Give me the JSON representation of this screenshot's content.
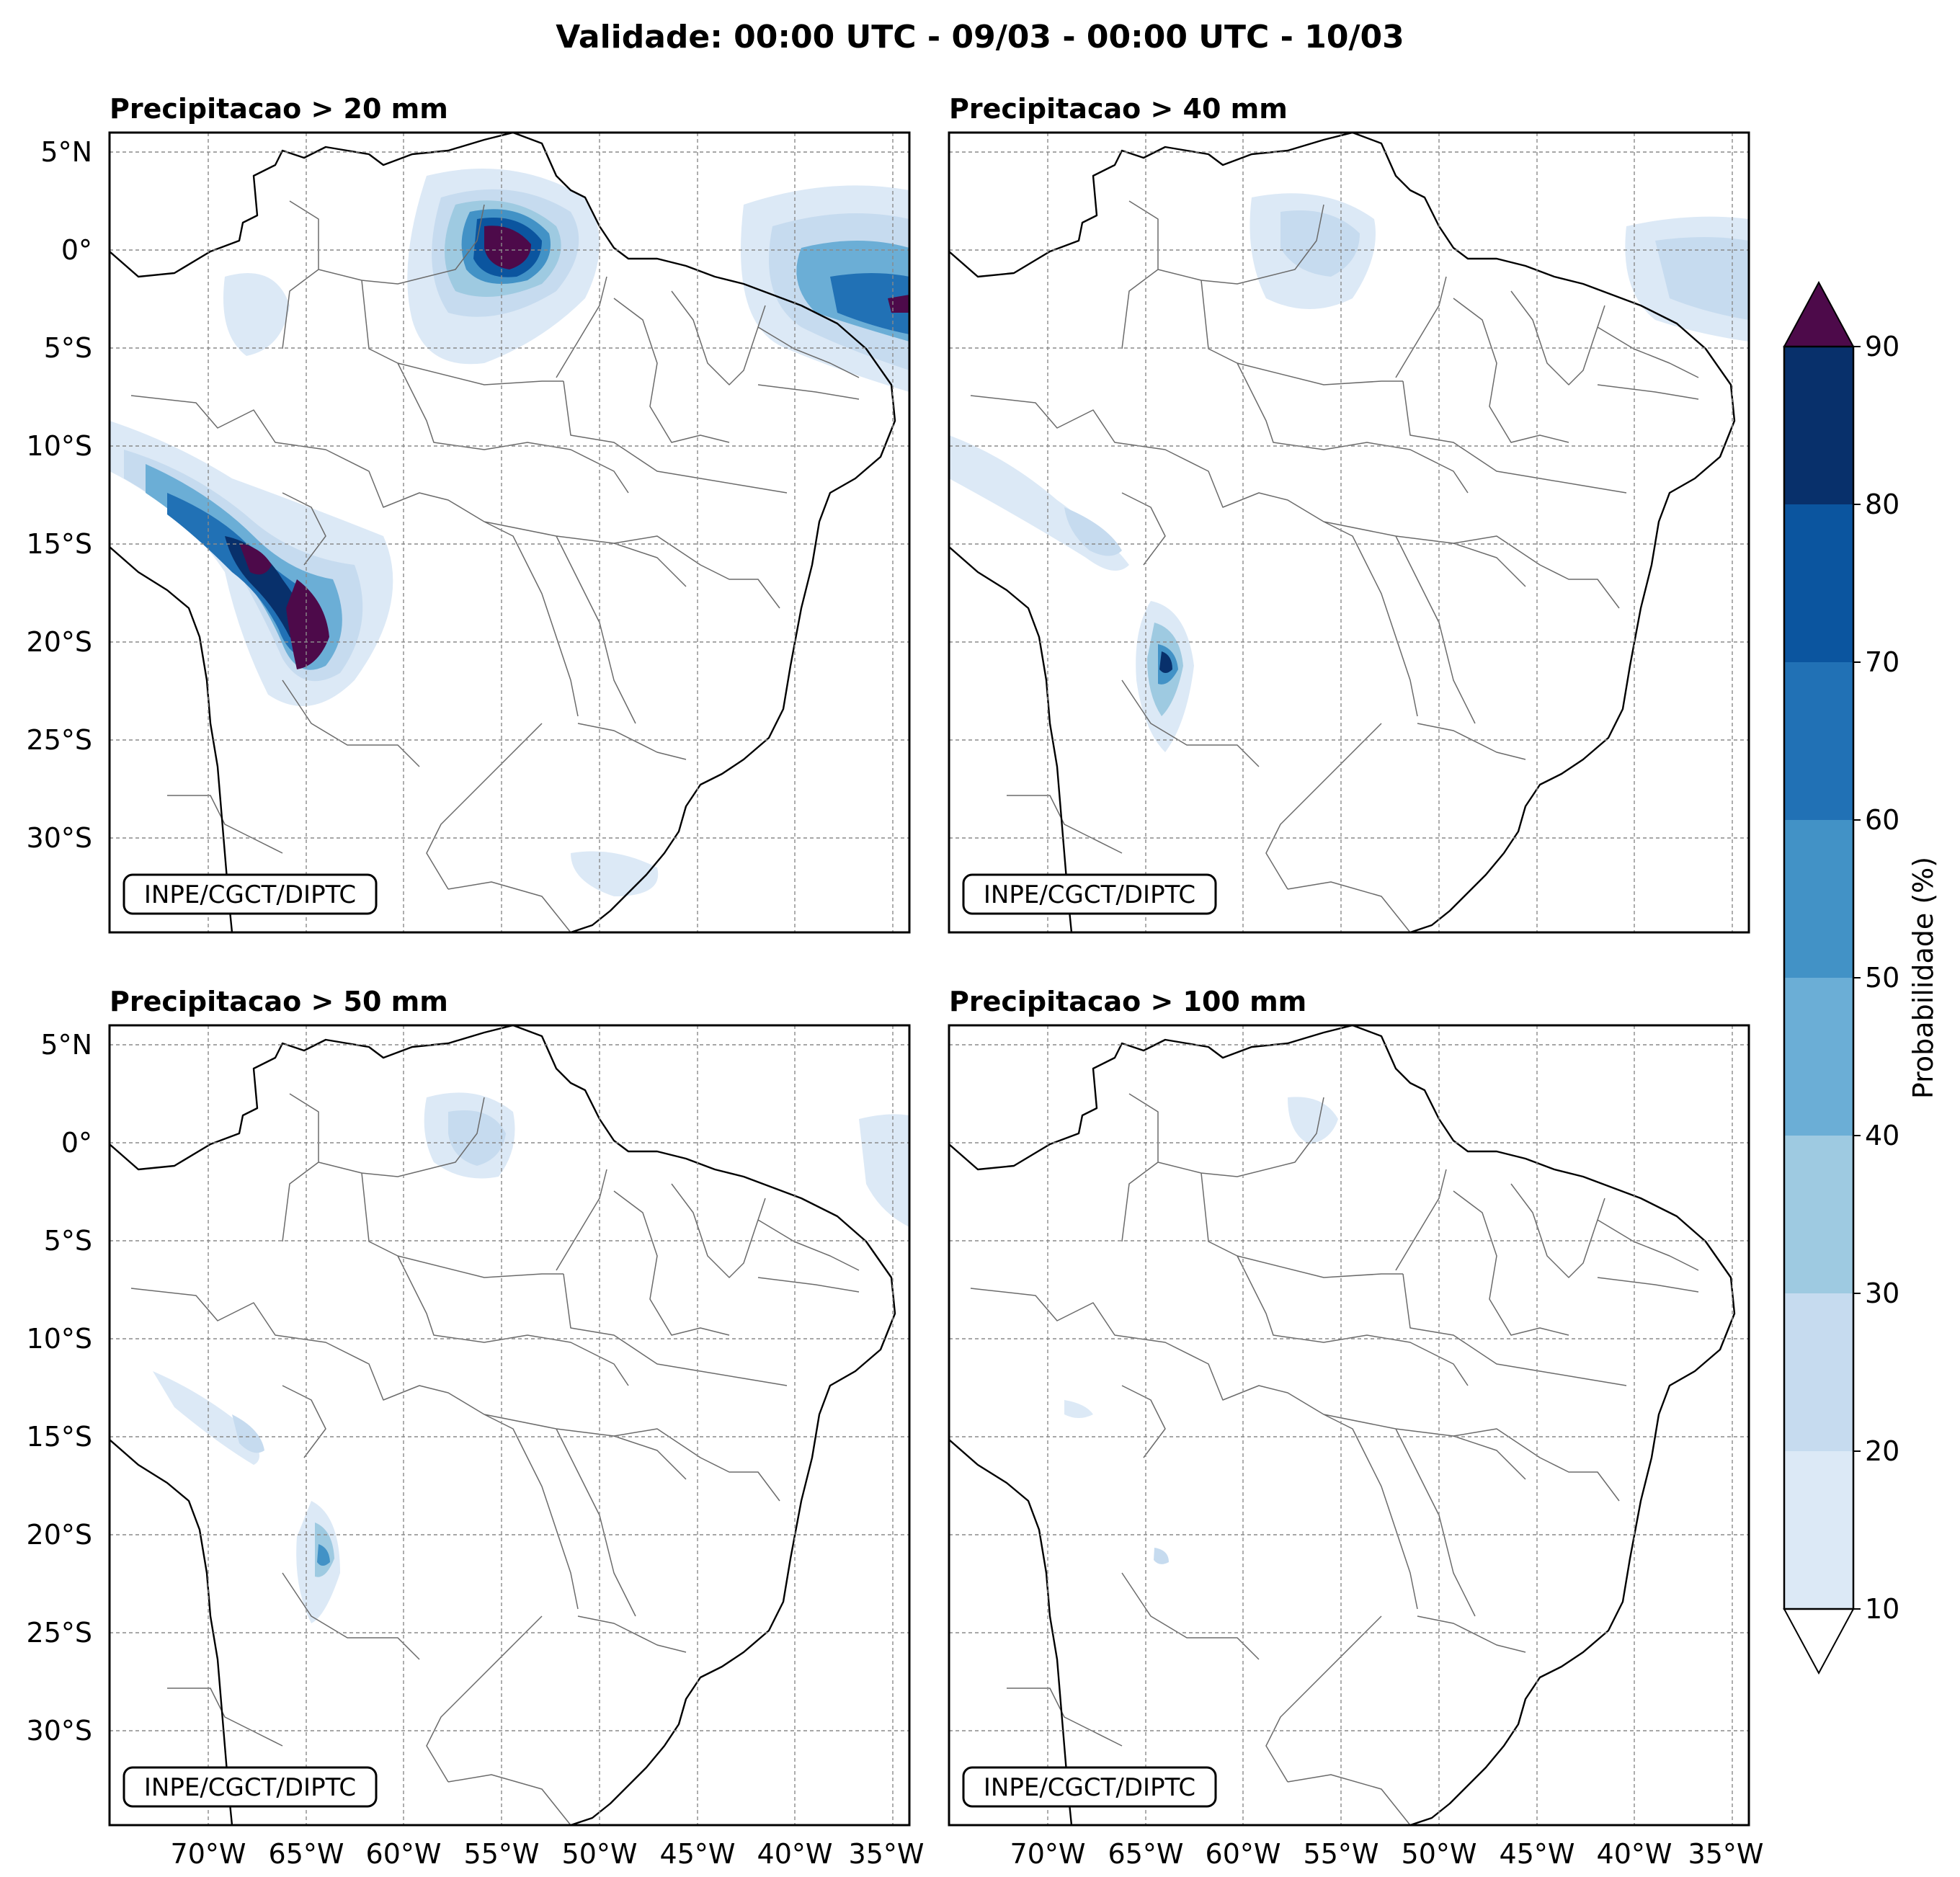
{
  "title": "Validade: 00:00 UTC - 09/03 - 00:00 UTC - 10/03",
  "credit": "INPE/CGCT/DIPTC",
  "panels": [
    {
      "title": "Precipitacao > 20 mm"
    },
    {
      "title": "Precipitacao > 40 mm"
    },
    {
      "title": "Precipitacao > 50 mm"
    },
    {
      "title": "Precipitacao > 100 mm"
    }
  ],
  "lat_ticks": [
    "5°N",
    "0°",
    "5°S",
    "10°S",
    "15°S",
    "20°S",
    "25°S",
    "30°S"
  ],
  "lon_ticks": [
    "70°W",
    "65°W",
    "60°W",
    "55°W",
    "50°W",
    "45°W",
    "40°W",
    "35°W"
  ],
  "colorbar": {
    "label": "Probabilidade (%)",
    "ticks": [
      "10",
      "20",
      "30",
      "40",
      "50",
      "60",
      "70",
      "80",
      "90"
    ],
    "colors": [
      "#dce9f6",
      "#c6dbef",
      "#9ecae1",
      "#6baed6",
      "#4292c6",
      "#2171b5",
      "#0b559f",
      "#08306b"
    ],
    "over_color": "#4d0a4a",
    "under_color": "#ffffff"
  }
}
